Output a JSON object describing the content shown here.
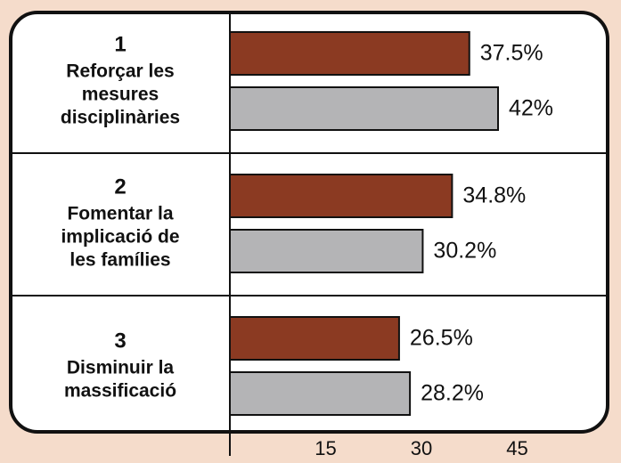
{
  "chart_data": {
    "type": "bar",
    "orientation": "horizontal",
    "categories": [
      [
        "1",
        "Reforçar les",
        "mesures",
        "disciplinàries"
      ],
      [
        "2",
        "Fomentar la",
        "implicació de",
        "les famílies"
      ],
      [
        "3",
        "Disminuir la",
        "massificació"
      ]
    ],
    "series": [
      {
        "color": "#8b3a22",
        "values": [
          37.5,
          34.8,
          26.5
        ],
        "value_labels": [
          "37.5%",
          "34.8%",
          "26.5%"
        ]
      },
      {
        "color": "#b4b4b6",
        "values": [
          42,
          30.2,
          28.2
        ],
        "value_labels": [
          "42%",
          "30.2%",
          "28.2%"
        ]
      }
    ],
    "xlim": [
      0,
      60
    ],
    "xticks": [
      15,
      30,
      45
    ],
    "grid": false
  }
}
